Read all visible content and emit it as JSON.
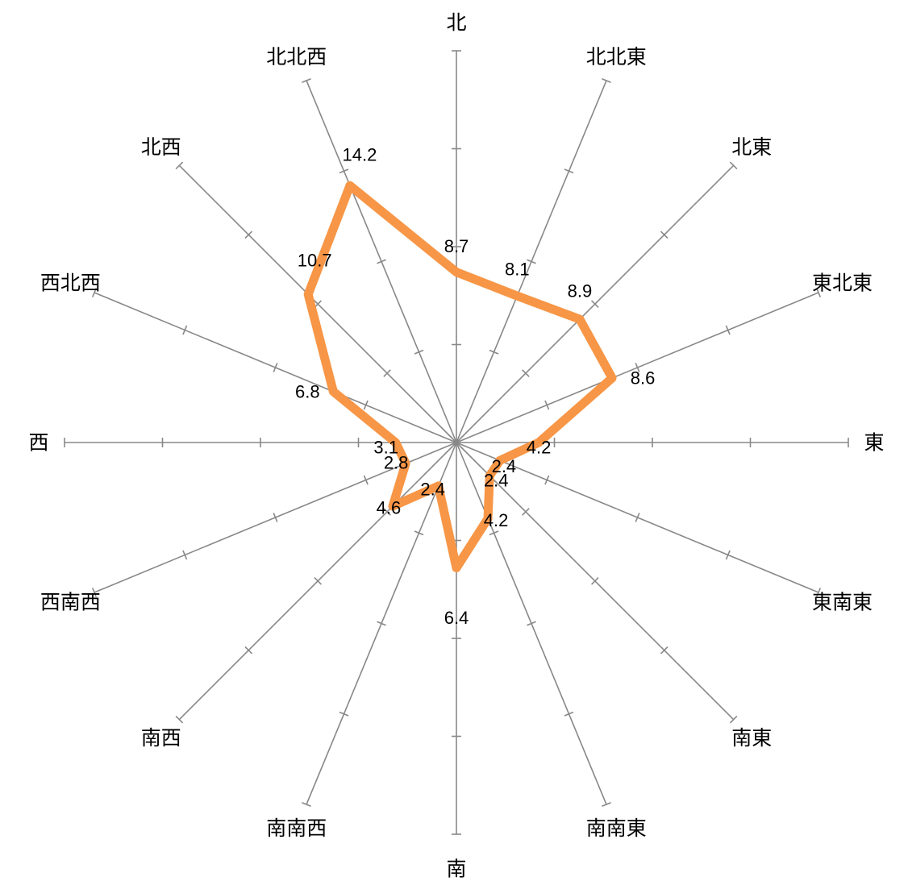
{
  "chart_data": {
    "type": "radar",
    "title": "",
    "categories": [
      "北",
      "北北東",
      "北東",
      "東北東",
      "東",
      "東南東",
      "南東",
      "南南東",
      "南",
      "南南西",
      "南西",
      "西南西",
      "西",
      "西北西",
      "北西",
      "北北西"
    ],
    "series": [
      {
        "values": [
          8.7,
          8.1,
          8.9,
          8.6,
          4.2,
          2.4,
          2.4,
          4.2,
          6.4,
          2.4,
          4.6,
          2.8,
          3.1,
          6.8,
          10.7,
          14.2
        ]
      }
    ],
    "data_labels": [
      "8.7",
      "8.1",
      "8.9",
      "8.6",
      "4.2",
      "2.4",
      "2.4",
      "4.2",
      "6.4",
      "2.4",
      "4.6",
      "2.8",
      "3.1",
      "6.8",
      "10.7",
      "14.2"
    ],
    "rmin": 0,
    "rmax": 20,
    "tick_step": 5,
    "gridlines": false,
    "legend": "none",
    "colors": {
      "series": "#F79646",
      "axis": "#888888",
      "text": "#000000"
    }
  }
}
